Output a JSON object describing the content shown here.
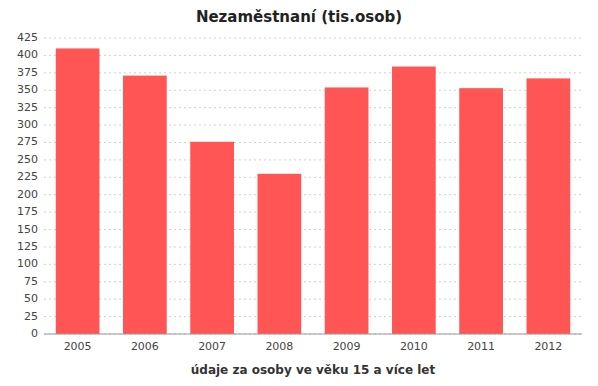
{
  "chart_data": {
    "type": "bar",
    "title": "Nezaměstnaní (tis.osob)",
    "xlabel": "údaje za osoby ve věku 15 a více let",
    "categories": [
      "2005",
      "2006",
      "2007",
      "2008",
      "2009",
      "2010",
      "2011",
      "2012"
    ],
    "values": [
      410,
      371,
      276,
      230,
      354,
      384,
      353,
      367
    ],
    "color": "#FF5555",
    "ylim": [
      0,
      425
    ],
    "yticks": [
      0,
      25,
      50,
      75,
      100,
      125,
      150,
      175,
      200,
      225,
      250,
      275,
      300,
      325,
      350,
      375,
      400,
      425
    ],
    "grid": true
  }
}
